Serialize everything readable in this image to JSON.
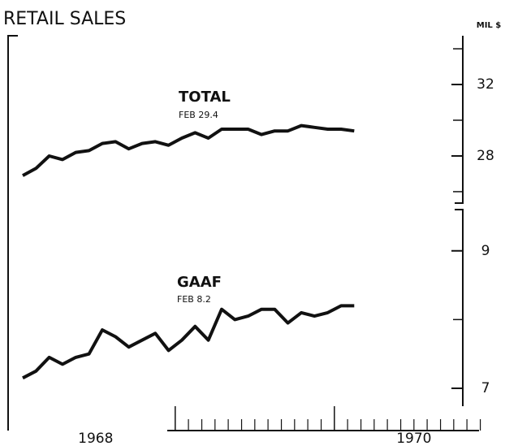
{
  "chart_data": [
    {
      "type": "line",
      "title": "RETAIL SALES",
      "y_label": "MIL $",
      "x": [
        1968.042,
        1968.125,
        1968.208,
        1968.292,
        1968.375,
        1968.458,
        1968.542,
        1968.625,
        1968.708,
        1968.792,
        1968.875,
        1968.958,
        1969.042,
        1969.125,
        1969.208,
        1969.292,
        1969.375,
        1969.458,
        1969.542,
        1969.625,
        1969.708,
        1969.792,
        1969.875,
        1969.958,
        1970.042,
        1970.125
      ],
      "xlim": [
        1967.95,
        1970.96
      ],
      "series": [
        {
          "name": "TOTAL",
          "color": "#111111",
          "values": [
            26.9,
            27.3,
            28.0,
            27.8,
            28.2,
            28.3,
            28.7,
            28.8,
            28.4,
            28.7,
            28.8,
            28.6,
            29.0,
            29.3,
            29.0,
            29.5,
            29.5,
            29.5,
            29.2,
            29.4,
            29.4,
            29.7,
            29.6,
            29.5,
            29.5,
            29.4
          ]
        }
      ],
      "annotation": "FEB 29.4",
      "ylim": [
        25.36,
        34.73
      ],
      "yticks": [
        28,
        32
      ],
      "minor_yticks": [
        26,
        30,
        34
      ]
    },
    {
      "type": "line",
      "series": [
        {
          "name": "GAAF",
          "color": "#111111",
          "values": [
            7.15,
            7.25,
            7.45,
            7.35,
            7.45,
            7.5,
            7.85,
            7.75,
            7.6,
            7.7,
            7.8,
            7.55,
            7.7,
            7.9,
            7.7,
            8.15,
            8.0,
            8.05,
            8.15,
            8.15,
            7.95,
            8.1,
            8.05,
            8.1,
            8.2,
            8.2
          ]
        }
      ],
      "annotation": "FEB 8.2",
      "ylim": [
        6.385,
        9.6
      ],
      "yticks": [
        7,
        9
      ],
      "minor_yticks": [
        8
      ],
      "xticks": [
        {
          "value": 1968.5,
          "label": "1968"
        },
        {
          "value": 1970.5,
          "label": "1970"
        }
      ],
      "year_xticks": [
        1969,
        1970
      ],
      "minor_xticks": [
        1969.083,
        1969.167,
        1969.25,
        1969.333,
        1969.417,
        1969.5,
        1969.583,
        1969.667,
        1969.75,
        1969.833,
        1969.917,
        1970.083,
        1970.167,
        1970.25,
        1970.333,
        1970.417,
        1970.5,
        1970.583,
        1970.667,
        1970.75,
        1970.833,
        1970.917
      ]
    }
  ]
}
